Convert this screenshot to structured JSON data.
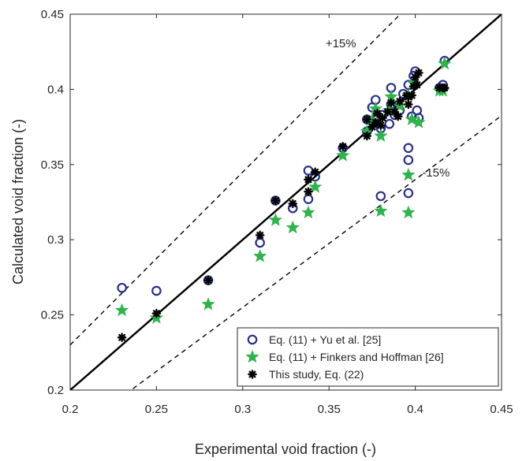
{
  "chart_data": {
    "type": "scatter",
    "xlabel": "Experimental void fraction (-)",
    "ylabel": "Calculated void fraction (-)",
    "xlim": [
      0.2,
      0.45
    ],
    "ylim": [
      0.2,
      0.45
    ],
    "x_ticks": [
      "0.2",
      "0.25",
      "0.3",
      "0.35",
      "0.4",
      "0.45"
    ],
    "y_ticks": [
      "0.2",
      "0.25",
      "0.3",
      "0.35",
      "0.4",
      "0.45"
    ],
    "grid": false,
    "box": true,
    "legend_position": "bottom-right",
    "reference_lines": [
      {
        "slope": 1.0,
        "style": "solid",
        "color": "#000000"
      },
      {
        "slope": 1.15,
        "style": "dashed",
        "color": "#000000",
        "label": "+15%",
        "label_at": [
          0.348,
          0.428
        ]
      },
      {
        "slope": 0.85,
        "style": "dashed",
        "color": "#000000",
        "label": "-15%",
        "label_at": [
          0.404,
          0.342
        ]
      }
    ],
    "series": [
      {
        "name": "Eq. (11) + Yu et al. [25]",
        "marker": "circle",
        "color": "#2b2f8c",
        "points": [
          [
            0.23,
            0.268
          ],
          [
            0.25,
            0.266
          ],
          [
            0.28,
            0.273
          ],
          [
            0.31,
            0.298
          ],
          [
            0.319,
            0.326
          ],
          [
            0.329,
            0.321
          ],
          [
            0.338,
            0.346
          ],
          [
            0.338,
            0.327
          ],
          [
            0.342,
            0.342
          ],
          [
            0.358,
            0.361
          ],
          [
            0.372,
            0.38
          ],
          [
            0.372,
            0.372
          ],
          [
            0.375,
            0.388
          ],
          [
            0.377,
            0.393
          ],
          [
            0.378,
            0.382
          ],
          [
            0.38,
            0.329
          ],
          [
            0.38,
            0.374
          ],
          [
            0.381,
            0.383
          ],
          [
            0.385,
            0.377
          ],
          [
            0.386,
            0.401
          ],
          [
            0.386,
            0.39
          ],
          [
            0.388,
            0.383
          ],
          [
            0.391,
            0.386
          ],
          [
            0.393,
            0.397
          ],
          [
            0.396,
            0.403
          ],
          [
            0.396,
            0.361
          ],
          [
            0.396,
            0.353
          ],
          [
            0.396,
            0.331
          ],
          [
            0.398,
            0.382
          ],
          [
            0.399,
            0.409
          ],
          [
            0.4,
            0.412
          ],
          [
            0.401,
            0.386
          ],
          [
            0.402,
            0.381
          ],
          [
            0.414,
            0.401
          ],
          [
            0.416,
            0.403
          ],
          [
            0.417,
            0.419
          ]
        ]
      },
      {
        "name": "Eq. (11) + Finkers and Hoffman [26]",
        "marker": "star",
        "color": "#2fb34a",
        "points": [
          [
            0.23,
            0.253
          ],
          [
            0.25,
            0.248
          ],
          [
            0.28,
            0.257
          ],
          [
            0.31,
            0.289
          ],
          [
            0.319,
            0.313
          ],
          [
            0.329,
            0.308
          ],
          [
            0.338,
            0.318
          ],
          [
            0.342,
            0.335
          ],
          [
            0.358,
            0.356
          ],
          [
            0.372,
            0.372
          ],
          [
            0.375,
            0.379
          ],
          [
            0.377,
            0.387
          ],
          [
            0.38,
            0.369
          ],
          [
            0.38,
            0.319
          ],
          [
            0.385,
            0.386
          ],
          [
            0.386,
            0.395
          ],
          [
            0.391,
            0.389
          ],
          [
            0.396,
            0.343
          ],
          [
            0.396,
            0.318
          ],
          [
            0.396,
            0.396
          ],
          [
            0.398,
            0.38
          ],
          [
            0.399,
            0.404
          ],
          [
            0.402,
            0.378
          ],
          [
            0.414,
            0.399
          ],
          [
            0.416,
            0.399
          ],
          [
            0.417,
            0.417
          ]
        ]
      },
      {
        "name": "This study, Eq. (22)",
        "marker": "asterisk",
        "color": "#000000",
        "points": [
          [
            0.23,
            0.235
          ],
          [
            0.25,
            0.251
          ],
          [
            0.28,
            0.273
          ],
          [
            0.31,
            0.303
          ],
          [
            0.319,
            0.326
          ],
          [
            0.329,
            0.324
          ],
          [
            0.338,
            0.332
          ],
          [
            0.338,
            0.34
          ],
          [
            0.342,
            0.345
          ],
          [
            0.358,
            0.362
          ],
          [
            0.372,
            0.369
          ],
          [
            0.372,
            0.38
          ],
          [
            0.375,
            0.375
          ],
          [
            0.377,
            0.378
          ],
          [
            0.378,
            0.384
          ],
          [
            0.38,
            0.376
          ],
          [
            0.381,
            0.381
          ],
          [
            0.384,
            0.385
          ],
          [
            0.386,
            0.391
          ],
          [
            0.388,
            0.385
          ],
          [
            0.39,
            0.382
          ],
          [
            0.391,
            0.392
          ],
          [
            0.395,
            0.396
          ],
          [
            0.396,
            0.39
          ],
          [
            0.398,
            0.396
          ],
          [
            0.399,
            0.402
          ],
          [
            0.4,
            0.408
          ],
          [
            0.401,
            0.403
          ],
          [
            0.402,
            0.411
          ],
          [
            0.414,
            0.401
          ],
          [
            0.416,
            0.401
          ],
          [
            0.417,
            0.401
          ],
          [
            0.396,
            0.395
          ]
        ]
      }
    ]
  }
}
